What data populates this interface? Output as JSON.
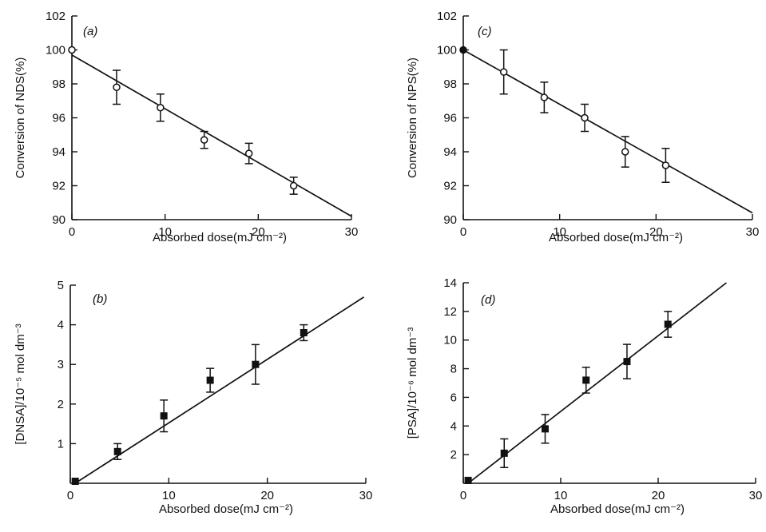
{
  "chart_data": [
    {
      "type": "scatter",
      "panel_label": "(a)",
      "xlabel": "Absorbed dose(mJ cm⁻²)",
      "ylabel": "Conversion of NDS(%)",
      "xlim": [
        0,
        30
      ],
      "ylim": [
        90,
        102
      ],
      "xticks": [
        0,
        10,
        20,
        30
      ],
      "yticks": [
        90,
        92,
        94,
        96,
        98,
        100,
        102
      ],
      "ytick_labels": [
        "90",
        "92",
        "94",
        "96",
        "98",
        "100",
        "102"
      ],
      "marker": "open-circle",
      "points": [
        {
          "x": 0,
          "y": 100.0,
          "err": 0
        },
        {
          "x": 4.8,
          "y": 97.8,
          "err": 1.0
        },
        {
          "x": 9.5,
          "y": 96.6,
          "err": 0.8
        },
        {
          "x": 14.2,
          "y": 94.7,
          "err": 0.5
        },
        {
          "x": 19.0,
          "y": 93.9,
          "err": 0.6
        },
        {
          "x": 23.8,
          "y": 92.0,
          "err": 0.5
        }
      ],
      "fit_line": [
        [
          0,
          99.7
        ],
        [
          30,
          90.2
        ]
      ]
    },
    {
      "type": "scatter",
      "panel_label": "(b)",
      "xlabel": "Absorbed dose(mJ cm⁻²)",
      "ylabel": "[DNSA]/10⁻⁵ mol dm⁻³",
      "xlim": [
        0,
        30
      ],
      "ylim": [
        0,
        5
      ],
      "xticks": [
        0,
        10,
        20,
        30
      ],
      "yticks": [
        1,
        2,
        3,
        4,
        5
      ],
      "ytick_labels": [
        "1",
        "2",
        "3",
        "4",
        "5"
      ],
      "marker": "filled-square",
      "points": [
        {
          "x": 0.5,
          "y": 0.05,
          "err": 0
        },
        {
          "x": 4.8,
          "y": 0.8,
          "err": 0.2
        },
        {
          "x": 9.5,
          "y": 1.7,
          "err": 0.4
        },
        {
          "x": 14.2,
          "y": 2.6,
          "err": 0.3
        },
        {
          "x": 18.8,
          "y": 3.0,
          "err": 0.5
        },
        {
          "x": 23.7,
          "y": 3.8,
          "err": 0.2
        }
      ],
      "fit_line": [
        [
          0.5,
          0.0
        ],
        [
          29.8,
          4.7
        ]
      ]
    },
    {
      "type": "scatter",
      "panel_label": "(c)",
      "xlabel": "Absorbed dose(mJ cm⁻²)",
      "ylabel": "Conversion of NPS(%)",
      "xlim": [
        0,
        30
      ],
      "ylim": [
        90,
        102
      ],
      "xticks": [
        0,
        10,
        20,
        30
      ],
      "yticks": [
        90,
        92,
        94,
        96,
        98,
        100,
        102
      ],
      "ytick_labels": [
        "90",
        "92",
        "94",
        "96",
        "98",
        "100",
        "102"
      ],
      "marker": "open-circle",
      "points": [
        {
          "x": 0,
          "y": 100.0,
          "err": 0
        },
        {
          "x": 4.2,
          "y": 98.7,
          "err": 1.3
        },
        {
          "x": 8.4,
          "y": 97.2,
          "err": 0.9
        },
        {
          "x": 12.6,
          "y": 96.0,
          "err": 0.8
        },
        {
          "x": 16.8,
          "y": 94.0,
          "err": 0.9
        },
        {
          "x": 21.0,
          "y": 93.2,
          "err": 1.0
        }
      ],
      "fit_line": [
        [
          0,
          100.0
        ],
        [
          30,
          90.4
        ]
      ]
    },
    {
      "type": "scatter",
      "panel_label": "(d)",
      "xlabel": "Absorbed dose(mJ cm⁻²)",
      "ylabel": "[PSA]/10⁻⁶ mol dm⁻³",
      "xlim": [
        0,
        30
      ],
      "ylim": [
        0,
        14
      ],
      "xticks": [
        0,
        10,
        20,
        30
      ],
      "yticks": [
        2,
        4,
        6,
        8,
        10,
        12,
        14
      ],
      "ytick_labels": [
        "2",
        "4",
        "6",
        "8",
        "10",
        "12",
        "14"
      ],
      "marker": "filled-square",
      "points": [
        {
          "x": 0.5,
          "y": 0.2,
          "err": 0
        },
        {
          "x": 4.2,
          "y": 2.1,
          "err": 1.0
        },
        {
          "x": 8.4,
          "y": 3.8,
          "err": 1.0
        },
        {
          "x": 12.6,
          "y": 7.2,
          "err": 0.9
        },
        {
          "x": 16.8,
          "y": 8.5,
          "err": 1.2
        },
        {
          "x": 21.0,
          "y": 11.1,
          "err": 0.9
        }
      ],
      "fit_line": [
        [
          0.5,
          0.0
        ],
        [
          27.0,
          14.0
        ]
      ]
    }
  ]
}
